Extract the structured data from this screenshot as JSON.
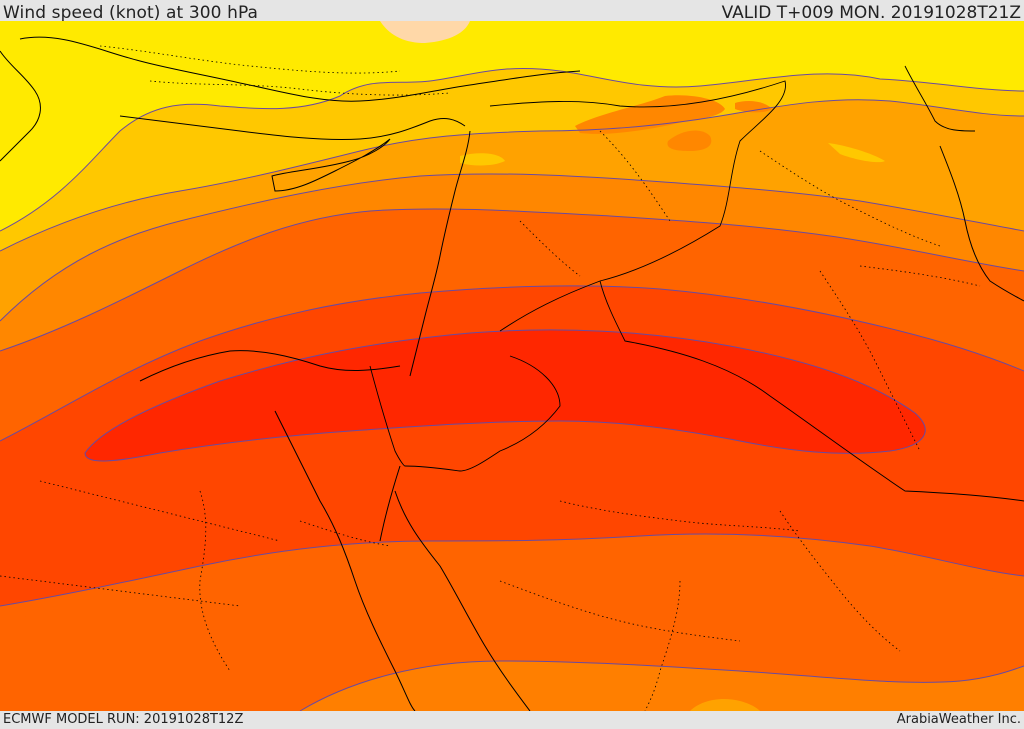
{
  "header": {
    "title": "Wind speed (knot) at 300 hPa",
    "valid": "VALID T+009 MON. 20191028T21Z"
  },
  "footer": {
    "model_run": "ECMWF MODEL RUN: 20191028T12Z",
    "credit": "ArabiaWeather Inc."
  },
  "colors": {
    "band_yellow": "#ffea00",
    "band_yellow_orange": "#ffc800",
    "band_light_orange": "#ffa200",
    "band_orange": "#ff8700",
    "band_dark_orange": "#ff6400",
    "band_red_orange": "#ff4600",
    "band_red": "#ff2700",
    "band_peach": "#ffd8a8",
    "contour": "#6a4aa0",
    "coast": "#000000"
  }
}
